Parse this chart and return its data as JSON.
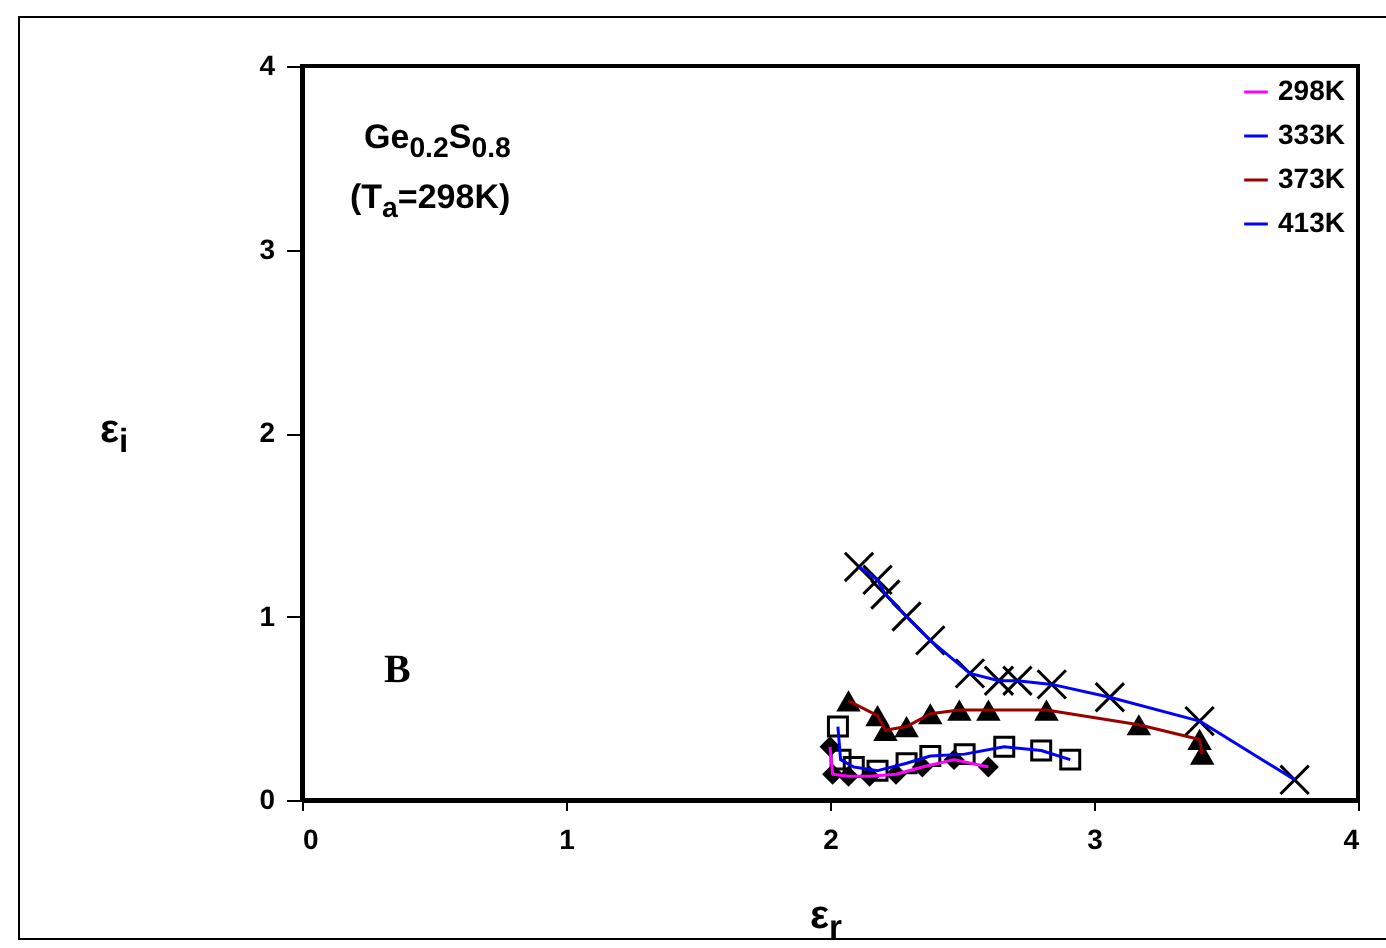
{
  "chart_data": {
    "type": "line",
    "xlabel": "ε$_{r}$",
    "ylabel": "ε$_{i}$",
    "annotations": [
      "Ge$_{0.2}$S$_{0.8}$",
      "(T$_{a}$=298K)",
      "B"
    ],
    "xlim": [
      0,
      4
    ],
    "xticks": [
      0,
      1,
      2,
      3,
      4
    ],
    "ylim": [
      0,
      4
    ],
    "yticks": [
      0,
      1,
      2,
      3,
      4
    ],
    "grid": false,
    "legend": "top right",
    "line_style": "solid",
    "series": [
      {
        "name": "298K",
        "color": "#ff00ff",
        "marker": "diamond",
        "x": [
          2.0,
          2.01,
          2.07,
          2.15,
          2.25,
          2.35,
          2.47,
          2.6
        ],
        "values": [
          0.29,
          0.14,
          0.13,
          0.13,
          0.14,
          0.18,
          0.22,
          0.18
        ]
      },
      {
        "name": "333K",
        "color": "#0000ff",
        "marker": "square",
        "x": [
          2.03,
          2.04,
          2.09,
          2.18,
          2.29,
          2.38,
          2.51,
          2.66,
          2.8,
          2.91
        ],
        "values": [
          0.4,
          0.22,
          0.18,
          0.16,
          0.2,
          0.24,
          0.25,
          0.29,
          0.27,
          0.22
        ]
      },
      {
        "name": "373K",
        "color": "#990000",
        "marker": "triangle",
        "x": [
          2.07,
          2.18,
          2.21,
          2.29,
          2.38,
          2.49,
          2.6,
          2.82,
          3.17,
          3.4,
          3.41
        ],
        "values": [
          0.54,
          0.46,
          0.38,
          0.4,
          0.47,
          0.49,
          0.49,
          0.49,
          0.41,
          0.33,
          0.25
        ]
      },
      {
        "name": "413K",
        "color": "#0000ff",
        "marker": "cross",
        "x": [
          2.11,
          2.18,
          2.21,
          2.29,
          2.38,
          2.53,
          2.64,
          2.71,
          2.84,
          3.06,
          3.4,
          3.76
        ],
        "values": [
          1.27,
          1.2,
          1.12,
          1.0,
          0.87,
          0.69,
          0.65,
          0.65,
          0.63,
          0.56,
          0.43,
          0.11
        ]
      }
    ]
  }
}
